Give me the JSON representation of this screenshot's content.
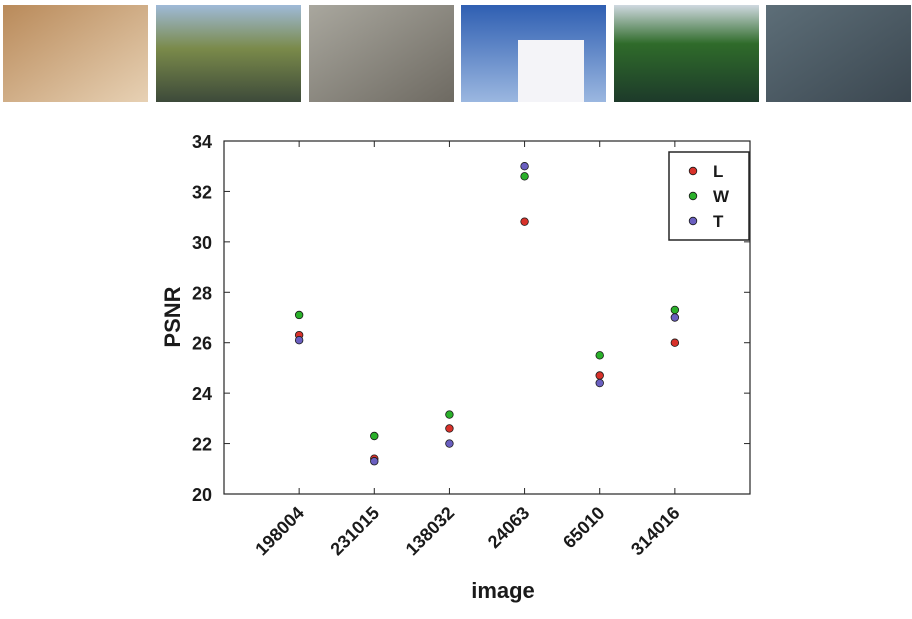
{
  "chart_data": {
    "type": "scatter",
    "x_label": "image",
    "y_label": "PSNR",
    "categories": [
      "198004",
      "231015",
      "138032",
      "24063",
      "65010",
      "314016"
    ],
    "series": [
      {
        "name": "L",
        "color": "#d8312a",
        "values": [
          26.3,
          21.4,
          22.6,
          30.8,
          24.7,
          26.0
        ]
      },
      {
        "name": "W",
        "color": "#2ab02a",
        "values": [
          27.1,
          22.3,
          23.15,
          32.6,
          25.5,
          27.3
        ]
      },
      {
        "name": "T",
        "color": "#6a5fc0",
        "values": [
          26.1,
          21.3,
          22.0,
          33.0,
          24.4,
          27.0
        ]
      }
    ],
    "ylim": [
      20,
      34
    ],
    "yticks": [
      20,
      22,
      24,
      26,
      28,
      30,
      32,
      34
    ],
    "grid": false,
    "legend": "upper right"
  }
}
